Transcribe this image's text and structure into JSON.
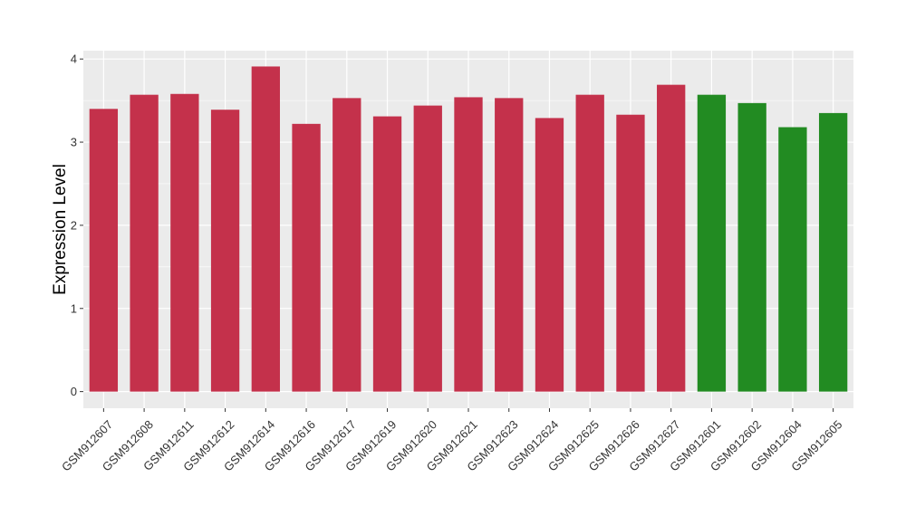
{
  "chart_data": {
    "type": "bar",
    "title": "",
    "xlabel": "",
    "ylabel": "Expression Level",
    "ylim": [
      -0.2,
      4.1
    ],
    "yticks": [
      0,
      1,
      2,
      3,
      4
    ],
    "grid": true,
    "legend": "none",
    "colors": {
      "group_a": "#C4314B",
      "group_b": "#228B22",
      "panel_bg": "#EBEBEB",
      "grid": "#FFFFFF"
    },
    "categories": [
      "GSM912607",
      "GSM912608",
      "GSM912611",
      "GSM912612",
      "GSM912614",
      "GSM912616",
      "GSM912617",
      "GSM912619",
      "GSM912620",
      "GSM912621",
      "GSM912623",
      "GSM912624",
      "GSM912625",
      "GSM912626",
      "GSM912627",
      "GSM912601",
      "GSM912602",
      "GSM912604",
      "GSM912605"
    ],
    "values": [
      3.4,
      3.57,
      3.58,
      3.39,
      3.91,
      3.22,
      3.53,
      3.31,
      3.44,
      3.54,
      3.53,
      3.29,
      3.57,
      3.33,
      3.69,
      3.57,
      3.47,
      3.18,
      3.35
    ],
    "bar_groups": [
      "group_a",
      "group_a",
      "group_a",
      "group_a",
      "group_a",
      "group_a",
      "group_a",
      "group_a",
      "group_a",
      "group_a",
      "group_a",
      "group_a",
      "group_a",
      "group_a",
      "group_a",
      "group_b",
      "group_b",
      "group_b",
      "group_b"
    ]
  }
}
